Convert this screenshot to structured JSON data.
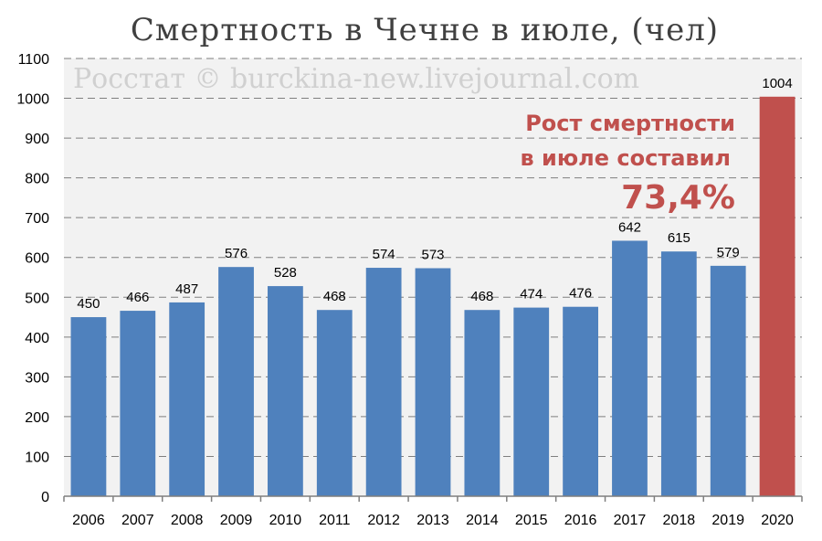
{
  "chart_data": {
    "type": "bar",
    "title": "Смертность в Чечне в июле, (чел)",
    "watermark": "Росстат © burckina-new.livejournal.com",
    "categories": [
      "2006",
      "2007",
      "2008",
      "2009",
      "2010",
      "2011",
      "2012",
      "2013",
      "2014",
      "2015",
      "2016",
      "2017",
      "2018",
      "2019",
      "2020"
    ],
    "values": [
      450,
      466,
      487,
      576,
      528,
      468,
      574,
      573,
      468,
      474,
      476,
      642,
      615,
      579,
      1004
    ],
    "ylim": [
      0,
      1100
    ],
    "yticks": [
      0,
      100,
      200,
      300,
      400,
      500,
      600,
      700,
      800,
      900,
      1000,
      1100
    ],
    "grid": true,
    "grid_style": "dashed",
    "xlabel": "",
    "ylabel": "",
    "colors": {
      "default": "#4f81bd",
      "highlight": "#c0504d",
      "plot_bg": "#f2f2f2"
    },
    "highlight_index": 14,
    "annotation": {
      "line1": "Рост смертности",
      "line2": "в июле составил",
      "value": "73,4%"
    }
  }
}
